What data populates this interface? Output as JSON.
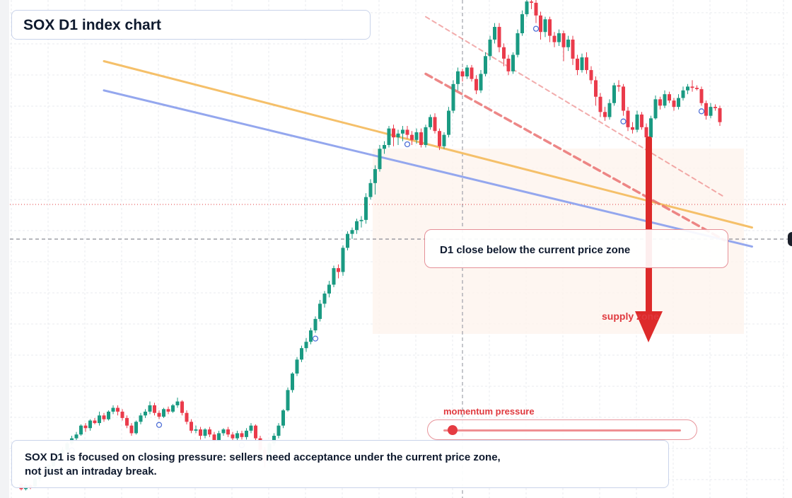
{
  "title": "SOX D1 index chart",
  "callout": "D1 close below the current price zone",
  "supply_label": "supply zone",
  "momentum": {
    "label": "momentum pressure",
    "level_pct": 4
  },
  "note": {
    "line1": "SOX D1 is focused on closing pressure: sellers need acceptance under the current price zone,",
    "line2": "not just an intraday break."
  },
  "colors": {
    "up": "#1a9a82",
    "down": "#ea3b4b",
    "orange_line": "#f5c06a",
    "blue_line": "#94a7ee",
    "red_dash": "#e96a6a",
    "arrow": "#dd2a2a",
    "marker": "#4f6fd6",
    "zone_fill": "#fdf3ec"
  },
  "chart_data": {
    "type": "candlestick",
    "title": "SOX D1 index chart",
    "xlabel": "",
    "ylabel": "",
    "grid": true,
    "candles": [
      [
        0.6,
        0.2,
        0.7,
        0.1
      ],
      [
        0.2,
        0.5,
        0.6,
        0.1
      ],
      [
        0.5,
        0.3,
        0.6,
        0.2
      ],
      [
        0.4,
        1.0,
        1.1,
        0.3
      ],
      [
        1.0,
        1.6,
        1.7,
        0.8
      ],
      [
        1.6,
        1.4,
        1.8,
        1.2
      ],
      [
        1.4,
        2.1,
        2.2,
        1.3
      ],
      [
        2.0,
        2.5,
        2.6,
        1.9
      ],
      [
        2.5,
        3.0,
        3.2,
        2.4
      ],
      [
        3.0,
        3.3,
        3.5,
        2.8
      ],
      [
        3.3,
        3.8,
        3.9,
        3.1
      ],
      [
        3.8,
        4.2,
        4.4,
        3.7
      ],
      [
        4.2,
        4.5,
        4.7,
        4.0
      ],
      [
        4.5,
        5.2,
        5.3,
        4.4
      ],
      [
        5.2,
        5.0,
        5.4,
        4.7
      ],
      [
        5.0,
        5.6,
        5.7,
        4.8
      ],
      [
        5.6,
        5.4,
        5.8,
        5.3
      ],
      [
        5.4,
        6.0,
        6.3,
        5.2
      ],
      [
        6.0,
        5.7,
        6.2,
        5.5
      ],
      [
        5.7,
        6.3,
        6.4,
        5.6
      ],
      [
        6.3,
        6.6,
        6.8,
        6.1
      ],
      [
        6.6,
        6.3,
        6.8,
        6.0
      ],
      [
        6.3,
        5.8,
        6.5,
        5.6
      ],
      [
        5.8,
        5.2,
        6.0,
        5.0
      ],
      [
        5.2,
        4.6,
        5.4,
        4.4
      ],
      [
        4.6,
        5.5,
        5.6,
        4.5
      ],
      [
        5.5,
        6.0,
        6.2,
        5.3
      ],
      [
        6.0,
        6.3,
        6.5,
        5.8
      ],
      [
        6.3,
        6.8,
        7.1,
        6.1
      ],
      [
        6.8,
        6.2,
        7.0,
        6.0
      ],
      [
        6.2,
        5.9,
        6.4,
        5.7
      ],
      [
        5.9,
        6.5,
        6.6,
        5.8
      ],
      [
        6.5,
        6.3,
        6.7,
        6.1
      ],
      [
        6.3,
        6.8,
        6.9,
        6.2
      ],
      [
        6.8,
        7.1,
        7.4,
        6.6
      ],
      [
        7.1,
        6.2,
        7.2,
        6.0
      ],
      [
        6.2,
        5.5,
        6.4,
        5.3
      ],
      [
        5.5,
        4.8,
        5.7,
        4.6
      ],
      [
        4.8,
        4.9,
        5.2,
        4.6
      ],
      [
        4.9,
        4.4,
        5.1,
        4.1
      ],
      [
        4.4,
        4.9,
        5.0,
        4.2
      ],
      [
        4.9,
        4.5,
        5.1,
        4.3
      ],
      [
        4.5,
        4.0,
        4.7,
        3.8
      ],
      [
        4.0,
        4.6,
        4.8,
        3.9
      ],
      [
        4.6,
        4.9,
        5.0,
        4.4
      ],
      [
        4.9,
        4.5,
        5.1,
        4.3
      ],
      [
        4.5,
        4.2,
        4.7,
        4.0
      ],
      [
        4.2,
        4.6,
        4.8,
        4.0
      ],
      [
        4.6,
        4.3,
        4.8,
        4.1
      ],
      [
        4.3,
        4.8,
        5.0,
        4.1
      ],
      [
        4.8,
        5.2,
        5.4,
        4.6
      ],
      [
        5.2,
        4.2,
        5.3,
        4.0
      ],
      [
        4.2,
        3.3,
        4.4,
        3.1
      ],
      [
        3.3,
        2.4,
        3.5,
        1.9
      ],
      [
        2.4,
        3.8,
        3.9,
        2.2
      ],
      [
        3.8,
        4.4,
        4.6,
        3.6
      ],
      [
        4.4,
        5.2,
        5.4,
        4.2
      ],
      [
        5.2,
        6.4,
        6.5,
        5.0
      ],
      [
        6.4,
        8.0,
        8.2,
        6.3
      ],
      [
        8.0,
        9.3,
        9.4,
        7.8
      ],
      [
        9.3,
        10.4,
        10.6,
        9.1
      ],
      [
        10.4,
        11.3,
        11.5,
        10.2
      ],
      [
        11.3,
        11.8,
        12.1,
        11.0
      ],
      [
        11.8,
        12.7,
        12.9,
        11.6
      ],
      [
        12.7,
        13.6,
        13.8,
        12.5
      ],
      [
        13.6,
        14.8,
        15.1,
        13.4
      ],
      [
        14.8,
        15.6,
        15.8,
        14.5
      ],
      [
        15.6,
        16.3,
        16.6,
        15.3
      ],
      [
        16.3,
        17.6,
        17.8,
        16.1
      ],
      [
        17.6,
        17.3,
        17.9,
        16.8
      ],
      [
        17.3,
        19.2,
        19.4,
        17.0
      ],
      [
        19.2,
        20.3,
        20.5,
        19.0
      ],
      [
        20.3,
        20.6,
        20.8,
        19.9
      ],
      [
        20.6,
        21.3,
        21.5,
        20.3
      ],
      [
        21.3,
        21.4,
        21.7,
        20.8
      ],
      [
        21.4,
        23.2,
        23.5,
        21.1
      ],
      [
        23.2,
        24.3,
        24.6,
        23.0
      ],
      [
        24.3,
        25.4,
        25.7,
        23.4
      ],
      [
        25.4,
        27.0,
        27.3,
        25.2
      ],
      [
        27.0,
        27.3,
        27.6,
        26.6
      ],
      [
        27.3,
        28.6,
        28.8,
        27.1
      ],
      [
        28.6,
        27.9,
        28.9,
        27.2
      ],
      [
        27.9,
        28.2,
        28.5,
        27.3
      ],
      [
        28.2,
        28.5,
        28.8,
        27.6
      ],
      [
        28.5,
        28.1,
        28.8,
        27.8
      ],
      [
        28.1,
        27.7,
        28.4,
        27.3
      ],
      [
        27.7,
        28.3,
        28.6,
        27.4
      ],
      [
        28.3,
        27.3,
        28.6,
        27.1
      ],
      [
        27.3,
        28.7,
        28.9,
        27.1
      ],
      [
        28.7,
        29.5,
        29.7,
        28.5
      ],
      [
        29.5,
        28.4,
        29.8,
        28.2
      ],
      [
        28.4,
        27.2,
        28.6,
        26.9
      ],
      [
        27.2,
        28.1,
        28.3,
        27.0
      ],
      [
        28.1,
        30.0,
        30.3,
        27.9
      ],
      [
        30.0,
        32.1,
        32.4,
        29.8
      ],
      [
        32.1,
        33.1,
        33.4,
        31.6
      ],
      [
        33.1,
        32.7,
        33.3,
        32.3
      ],
      [
        32.7,
        33.4,
        33.6,
        32.5
      ],
      [
        33.4,
        32.5,
        33.6,
        32.3
      ],
      [
        32.5,
        31.6,
        32.8,
        31.3
      ],
      [
        31.6,
        32.9,
        33.2,
        31.4
      ],
      [
        32.9,
        34.3,
        34.6,
        32.7
      ],
      [
        34.3,
        35.6,
        35.9,
        34.0
      ],
      [
        35.6,
        36.6,
        36.9,
        35.3
      ],
      [
        36.6,
        35.0,
        36.9,
        34.6
      ],
      [
        35.0,
        34.1,
        35.3,
        33.5
      ],
      [
        34.1,
        33.1,
        34.4,
        32.8
      ],
      [
        33.1,
        34.4,
        34.6,
        32.9
      ],
      [
        34.4,
        36.1,
        36.4,
        34.2
      ],
      [
        36.1,
        37.6,
        37.9,
        35.9
      ],
      [
        37.6,
        38.6,
        38.9,
        37.4
      ],
      [
        38.6,
        38.5,
        39.2,
        38.0
      ],
      [
        38.5,
        37.5,
        38.8,
        36.9
      ],
      [
        37.5,
        36.2,
        37.8,
        35.6
      ],
      [
        36.2,
        37.2,
        37.4,
        35.8
      ],
      [
        37.2,
        35.9,
        37.4,
        35.4
      ],
      [
        35.9,
        35.4,
        36.2,
        35.0
      ],
      [
        35.4,
        36.1,
        36.4,
        35.1
      ],
      [
        36.1,
        35.0,
        36.3,
        33.9
      ],
      [
        35.0,
        35.6,
        35.9,
        34.7
      ],
      [
        35.6,
        34.1,
        35.9,
        33.6
      ],
      [
        34.1,
        33.2,
        34.4,
        32.8
      ],
      [
        33.2,
        34.2,
        34.5,
        33.0
      ],
      [
        34.2,
        33.2,
        34.6,
        32.9
      ],
      [
        33.2,
        32.4,
        33.5,
        32.1
      ],
      [
        32.4,
        31.1,
        32.7,
        30.4
      ],
      [
        31.1,
        29.9,
        31.4,
        29.5
      ],
      [
        29.9,
        29.5,
        30.3,
        29.2
      ],
      [
        29.5,
        30.6,
        30.9,
        29.3
      ],
      [
        30.6,
        32.0,
        32.2,
        30.4
      ],
      [
        32.0,
        31.9,
        32.4,
        31.5
      ],
      [
        31.9,
        30.0,
        32.1,
        29.6
      ],
      [
        30.0,
        28.7,
        30.3,
        28.4
      ],
      [
        28.7,
        28.5,
        29.1,
        28.2
      ],
      [
        28.5,
        29.7,
        30.0,
        28.3
      ],
      [
        29.7,
        28.7,
        29.9,
        28.5
      ],
      [
        28.7,
        27.9,
        29.0,
        27.6
      ],
      [
        27.9,
        29.4,
        29.6,
        27.8
      ],
      [
        29.4,
        30.9,
        31.2,
        29.3
      ],
      [
        30.9,
        30.4,
        31.1,
        30.1
      ],
      [
        30.4,
        31.3,
        31.6,
        30.2
      ],
      [
        31.3,
        30.8,
        31.5,
        30.6
      ],
      [
        30.8,
        30.3,
        31.0,
        30.0
      ],
      [
        30.3,
        31.0,
        31.3,
        30.1
      ],
      [
        31.0,
        31.6,
        31.9,
        30.8
      ],
      [
        31.6,
        31.9,
        32.1,
        31.3
      ],
      [
        31.9,
        31.8,
        32.4,
        31.5
      ],
      [
        31.8,
        31.7,
        32.0,
        31.6
      ],
      [
        31.7,
        30.6,
        31.9,
        30.4
      ],
      [
        30.6,
        29.6,
        30.8,
        29.3
      ],
      [
        29.6,
        30.3,
        30.6,
        29.4
      ],
      [
        30.3,
        30.2,
        30.5,
        30.0
      ],
      [
        30.2,
        29.1,
        30.4,
        28.8
      ]
    ],
    "markers": [
      {
        "index": 11,
        "label": "o"
      },
      {
        "index": 30,
        "label": "o"
      },
      {
        "index": 48,
        "label": "o"
      },
      {
        "index": 64,
        "label": "o"
      },
      {
        "index": 84,
        "label": "o"
      },
      {
        "index": 112,
        "label": "o"
      },
      {
        "index": 131,
        "label": "o"
      },
      {
        "index": 148,
        "label": "o"
      }
    ],
    "current_price": 29.1,
    "zone_line": 26.2,
    "trendlines": [
      {
        "name": "orange",
        "from": [
          18,
          33.9
        ],
        "to": [
          159,
          20.8
        ]
      },
      {
        "name": "blue",
        "from": [
          18,
          31.6
        ],
        "to": [
          159,
          19.3
        ]
      },
      {
        "name": "red_dash_upper",
        "from": [
          88,
          37.4
        ],
        "to": [
          153,
          23.2
        ]
      },
      {
        "name": "red_dash_lower",
        "from": [
          88,
          32.9
        ],
        "to": [
          153,
          19.8
        ]
      }
    ]
  }
}
